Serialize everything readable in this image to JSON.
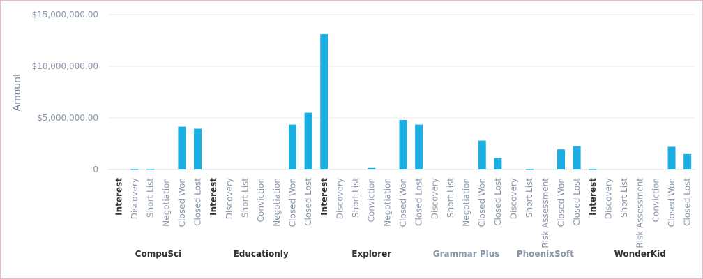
{
  "chart_data": {
    "type": "bar",
    "ylabel": "Amount",
    "ylim": [
      0,
      15000000
    ],
    "yticks": [
      {
        "value": 0,
        "label": "0"
      },
      {
        "value": 5000000,
        "label": "$5,000,000.00"
      },
      {
        "value": 10000000,
        "label": "$10,000,000.00"
      },
      {
        "value": 15000000,
        "label": "$15,000,000.00"
      }
    ],
    "grid": true,
    "bar_color": "#1aaee3",
    "groups": [
      {
        "name": "CompuSci",
        "name_color": "#333333",
        "categories": [
          {
            "label": "Interest",
            "bold": true,
            "value": 0
          },
          {
            "label": "Discovery",
            "value": 60000
          },
          {
            "label": "Short List",
            "value": 70000
          },
          {
            "label": "Negotiation",
            "value": 0
          },
          {
            "label": "Closed Won",
            "value": 4150000
          },
          {
            "label": "Closed Lost",
            "value": 3950000
          }
        ]
      },
      {
        "name": "Educationly",
        "name_color": "#333333",
        "categories": [
          {
            "label": "Interest",
            "bold": true,
            "value": 0
          },
          {
            "label": "Discovery",
            "value": 0
          },
          {
            "label": "Short List",
            "value": 0
          },
          {
            "label": "Conviction",
            "value": 0
          },
          {
            "label": "Negotiation",
            "value": 0
          },
          {
            "label": "Closed Won",
            "value": 4350000
          },
          {
            "label": "Closed Lost",
            "value": 5500000
          }
        ]
      },
      {
        "name": "Explorer",
        "name_color": "#333333",
        "categories": [
          {
            "label": "Interest",
            "bold": true,
            "value": 13100000
          },
          {
            "label": "Discovery",
            "value": 0
          },
          {
            "label": "Short List",
            "value": 0
          },
          {
            "label": "Conviction",
            "value": 150000
          },
          {
            "label": "Negotiation",
            "value": 0
          },
          {
            "label": "Closed Won",
            "value": 4800000
          },
          {
            "label": "Closed Lost",
            "value": 4350000
          }
        ]
      },
      {
        "name": "Grammar Plus",
        "name_color": "#8a96a8",
        "categories": [
          {
            "label": "Discovery",
            "value": 0
          },
          {
            "label": "Short List",
            "value": 0
          },
          {
            "label": "Negotiation",
            "value": 0
          },
          {
            "label": "Closed Won",
            "value": 2800000
          },
          {
            "label": "Closed Lost",
            "value": 1100000
          }
        ]
      },
      {
        "name": "PhoenixSoft",
        "name_color": "#8a96a8",
        "categories": [
          {
            "label": "Discovery",
            "value": 0
          },
          {
            "label": "Short List",
            "value": 60000
          },
          {
            "label": "Risk Assessment",
            "value": 0
          },
          {
            "label": "Closed Won",
            "value": 1950000
          },
          {
            "label": "Closed Lost",
            "value": 2250000
          }
        ]
      },
      {
        "name": "WonderKid",
        "name_color": "#333333",
        "categories": [
          {
            "label": "Interest",
            "bold": true,
            "value": 60000
          },
          {
            "label": "Discovery",
            "value": 0
          },
          {
            "label": "Short List",
            "value": 0
          },
          {
            "label": "Risk Assessment",
            "value": 0
          },
          {
            "label": "Conviction",
            "value": 0
          },
          {
            "label": "Closed Won",
            "value": 2200000
          },
          {
            "label": "Closed Lost",
            "value": 1500000
          }
        ]
      }
    ]
  }
}
